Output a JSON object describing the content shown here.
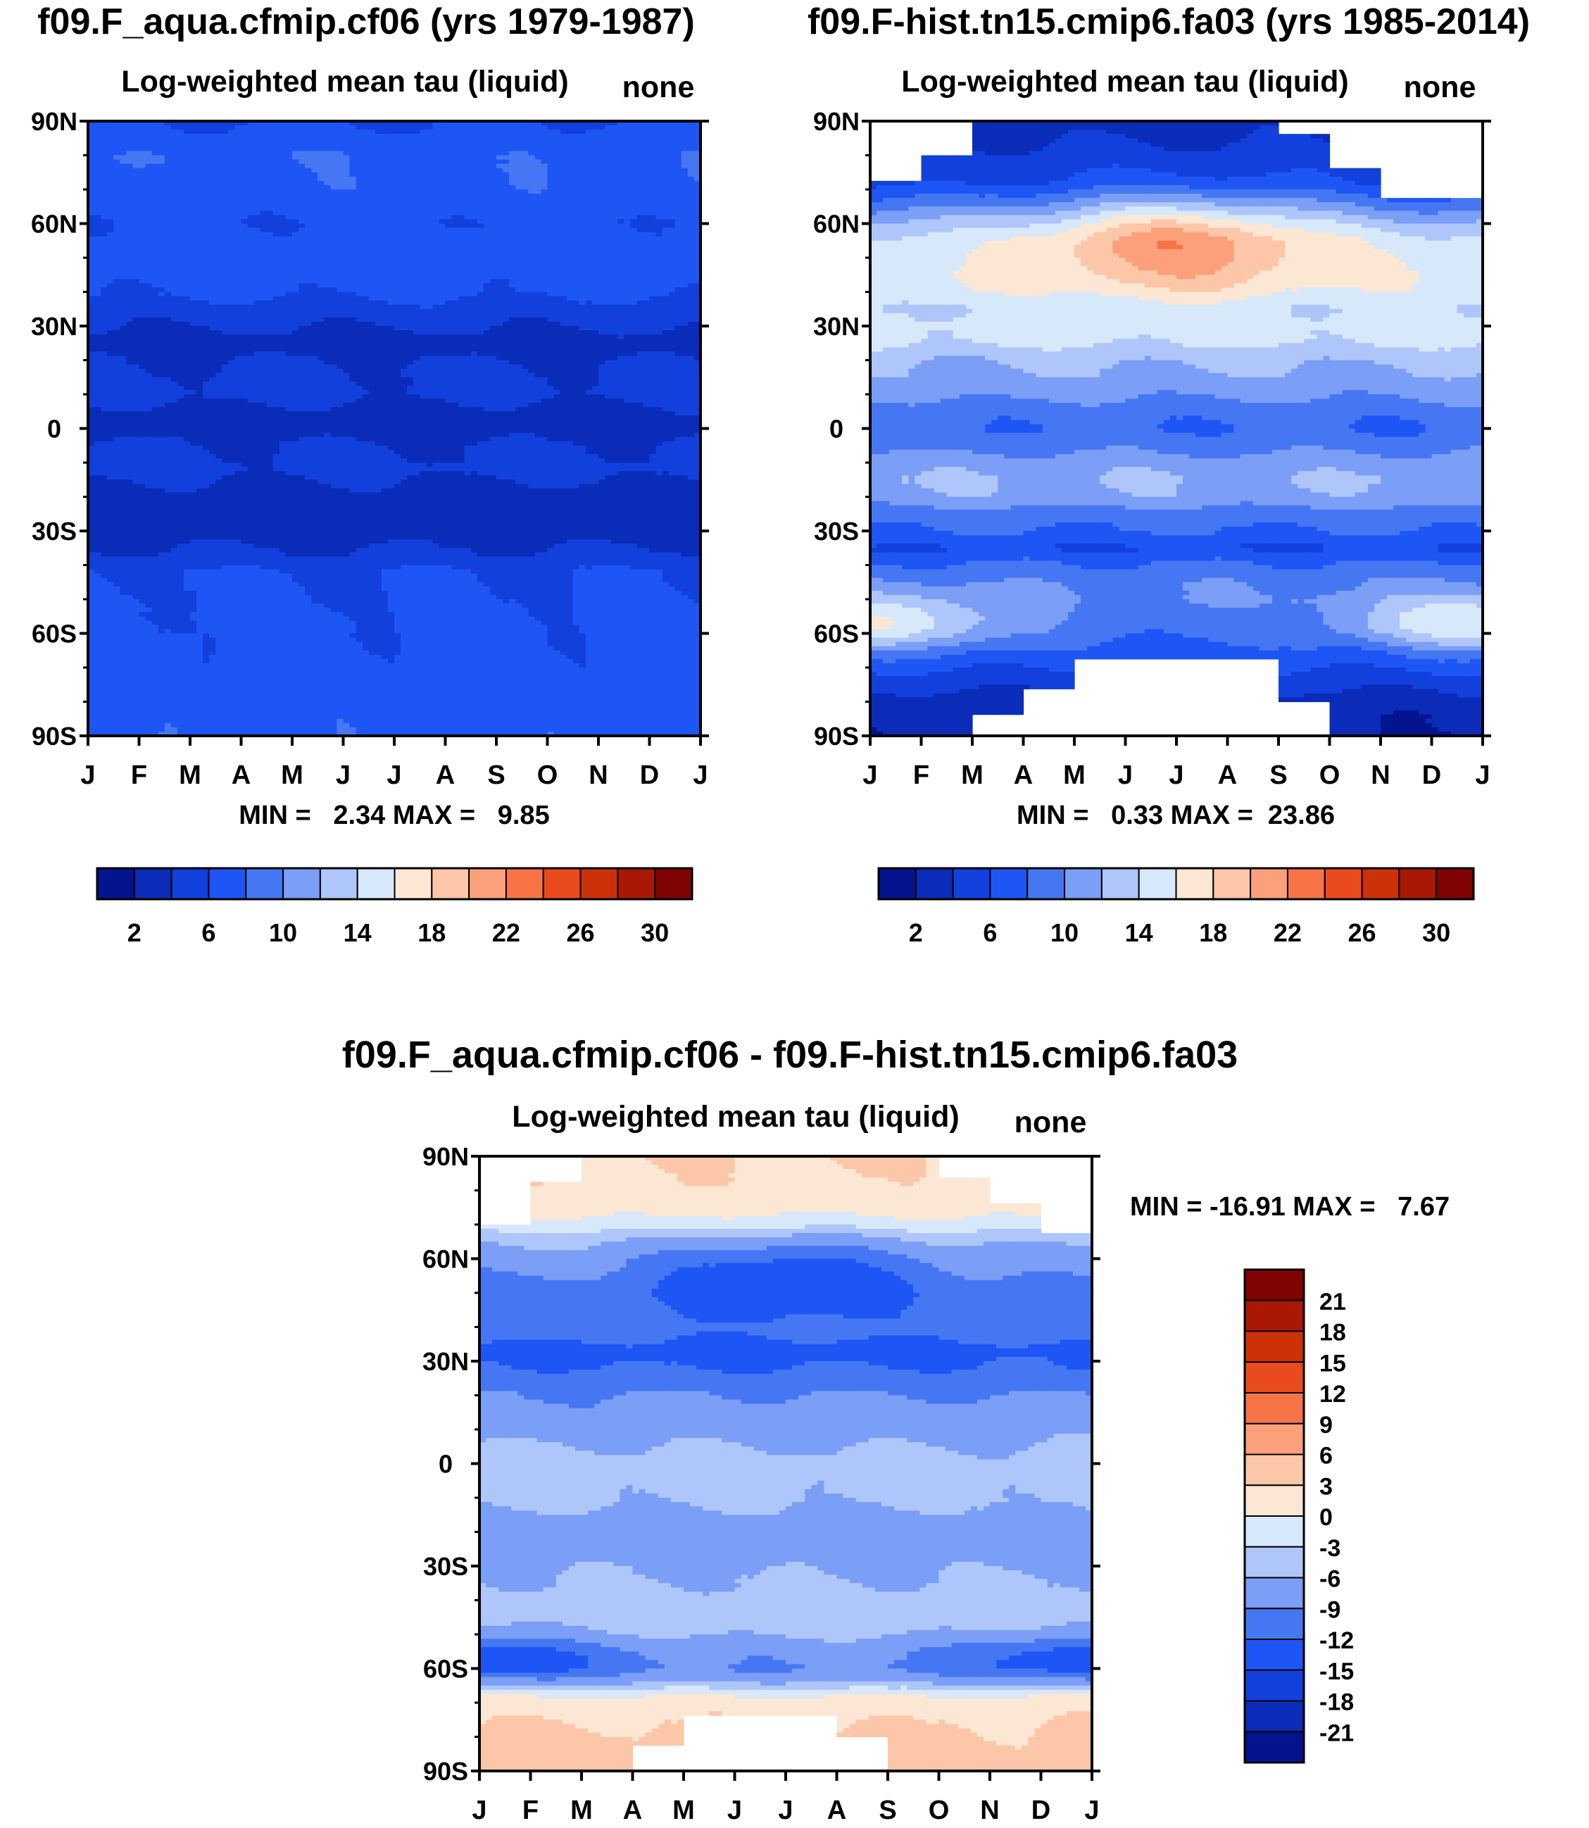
{
  "figure": {
    "panel_top_left_title": "f09.F_aqua.cfmip.cf06 (yrs 1979-1987)",
    "panel_top_right_title": "f09.F-hist.tn15.cmip6.fa03 (yrs 1985-2014)",
    "diff_title": "f09.F_aqua.cfmip.cf06 - f09.F-hist.tn15.cmip6.fa03"
  },
  "chart_data": [
    {
      "type": "heatmap",
      "id": "panel1",
      "title": "f09.F_aqua.cfmip.cf06 (yrs 1979-1987)",
      "subtitle": "Log-weighted mean tau (liquid)",
      "units": "none",
      "x_ticks": [
        "J",
        "F",
        "M",
        "A",
        "M",
        "J",
        "J",
        "A",
        "S",
        "O",
        "N",
        "D",
        "J"
      ],
      "y_ticks": [
        "90N",
        "60N",
        "30N",
        "0",
        "30S",
        "60S",
        "90S"
      ],
      "ylim": [
        -90,
        90
      ],
      "min_max": "MIN =   2.34 MAX =   9.85",
      "levels": [
        2,
        4,
        6,
        8,
        10,
        12,
        14,
        16,
        18,
        20,
        22,
        24,
        26,
        28,
        30,
        32
      ],
      "colorbar_labels": [
        "2",
        "6",
        "10",
        "14",
        "18",
        "22",
        "26",
        "30"
      ],
      "colors": [
        "#04148f",
        "#0a2cb8",
        "#1240dc",
        "#1e56f5",
        "#4677f3",
        "#7b9ef6",
        "#aec6fa",
        "#d7e8fb",
        "#fce6d4",
        "#fcc7a8",
        "#fba07a",
        "#f87447",
        "#ea4b1e",
        "#cc3108",
        "#a91804",
        "#7f0303"
      ],
      "lat_profile": [
        [
          90,
          6
        ],
        [
          80,
          7.6
        ],
        [
          70,
          7.4
        ],
        [
          60,
          6.4
        ],
        [
          50,
          7.2
        ],
        [
          40,
          6.4
        ],
        [
          33,
          4.8
        ],
        [
          25,
          3.0
        ],
        [
          18,
          4.2
        ],
        [
          10,
          4.6
        ],
        [
          3,
          3.0
        ],
        [
          0,
          2.9
        ],
        [
          -5,
          4.2
        ],
        [
          -12,
          4.6
        ],
        [
          -20,
          3.0
        ],
        [
          -30,
          2.8
        ],
        [
          -36,
          4.2
        ],
        [
          -42,
          6.0
        ],
        [
          -50,
          6.3
        ],
        [
          -60,
          6.5
        ],
        [
          -70,
          6.7
        ],
        [
          -80,
          7.3
        ],
        [
          -90,
          7.4
        ]
      ]
    },
    {
      "type": "heatmap",
      "id": "panel2",
      "title": "f09.F-hist.tn15.cmip6.fa03 (yrs 1985-2014)",
      "subtitle": "Log-weighted mean tau (liquid)",
      "units": "none",
      "x_ticks": [
        "J",
        "F",
        "M",
        "A",
        "M",
        "J",
        "J",
        "A",
        "S",
        "O",
        "N",
        "D",
        "J"
      ],
      "y_ticks": [
        "90N",
        "60N",
        "30N",
        "0",
        "30S",
        "60S",
        "90S"
      ],
      "ylim": [
        -90,
        90
      ],
      "min_max": "MIN =   0.33 MAX =  23.86",
      "levels": [
        2,
        4,
        6,
        8,
        10,
        12,
        14,
        16,
        18,
        20,
        22,
        24,
        26,
        28,
        30,
        32
      ],
      "colorbar_labels": [
        "2",
        "6",
        "10",
        "14",
        "18",
        "22",
        "26",
        "30"
      ],
      "colors": [
        "#04148f",
        "#0a2cb8",
        "#1240dc",
        "#1e56f5",
        "#4677f3",
        "#7b9ef6",
        "#aec6fa",
        "#d7e8fb",
        "#fce6d4",
        "#fcc7a8",
        "#fba07a",
        "#f87447",
        "#ea4b1e",
        "#cc3108",
        "#a91804",
        "#7f0303"
      ],
      "lat_profile": [
        [
          90,
          3
        ],
        [
          80,
          4.5
        ],
        [
          72,
          5.6
        ],
        [
          66,
          8.8
        ],
        [
          60,
          12.5
        ],
        [
          55,
          14.8
        ],
        [
          50,
          15.4
        ],
        [
          45,
          15.8
        ],
        [
          40,
          15.4
        ],
        [
          35,
          14
        ],
        [
          30,
          14.8
        ],
        [
          25,
          14.2
        ],
        [
          20,
          12.3
        ],
        [
          15,
          11.5
        ],
        [
          10,
          10.5
        ],
        [
          5,
          8.8
        ],
        [
          0,
          8.2
        ],
        [
          -5,
          9.2
        ],
        [
          -10,
          11.2
        ],
        [
          -15,
          12
        ],
        [
          -20,
          11.4
        ],
        [
          -25,
          9
        ],
        [
          -30,
          8
        ],
        [
          -35,
          6
        ],
        [
          -40,
          8.3
        ],
        [
          -45,
          9.6
        ],
        [
          -50,
          10
        ],
        [
          -55,
          9
        ],
        [
          -60,
          8.6
        ],
        [
          -65,
          7.3
        ],
        [
          -70,
          6
        ],
        [
          -75,
          4.5
        ],
        [
          -80,
          3
        ],
        [
          -85,
          2.4
        ],
        [
          -90,
          2.2
        ]
      ],
      "seasonal_bump": {
        "lat_center": 55,
        "lat_width": 14,
        "amplitude": 6.5,
        "peak_month": 6
      },
      "southern_bump": {
        "lat_center": -57,
        "lat_width": 8,
        "amplitude": 7,
        "peak_month": 0
      },
      "missing": {
        "north": [
          [
            0,
            72
          ],
          [
            1,
            80
          ],
          [
            2,
            90
          ],
          [
            3,
            90
          ],
          [
            4,
            90
          ],
          [
            5,
            90
          ],
          [
            6,
            90
          ],
          [
            7,
            90
          ],
          [
            8,
            86
          ],
          [
            9,
            76
          ],
          [
            10,
            68
          ],
          [
            11,
            68
          ],
          [
            12,
            68
          ]
        ],
        "south": [
          [
            0,
            -90
          ],
          [
            1,
            -90
          ],
          [
            2,
            -84
          ],
          [
            3,
            -76
          ],
          [
            4,
            -68
          ],
          [
            5,
            -68
          ],
          [
            6,
            -68
          ],
          [
            7,
            -68
          ],
          [
            8,
            -80
          ],
          [
            9,
            -90
          ],
          [
            10,
            -90
          ],
          [
            11,
            -90
          ],
          [
            12,
            -90
          ]
        ]
      }
    },
    {
      "type": "heatmap",
      "id": "panel3",
      "title": "f09.F_aqua.cfmip.cf06 - f09.F-hist.tn15.cmip6.fa03",
      "subtitle": "Log-weighted mean tau (liquid)",
      "units": "none",
      "x_ticks": [
        "J",
        "F",
        "M",
        "A",
        "M",
        "J",
        "J",
        "A",
        "S",
        "O",
        "N",
        "D",
        "J"
      ],
      "y_ticks": [
        "90N",
        "60N",
        "30N",
        "0",
        "30S",
        "60S",
        "90S"
      ],
      "ylim": [
        -90,
        90
      ],
      "min_max": "MIN = -16.91 MAX =   7.67",
      "levels": [
        -21,
        -18,
        -15,
        -12,
        -9,
        -6,
        -3,
        0,
        3,
        6,
        9,
        12,
        15,
        18,
        21
      ],
      "colorbar_labels": [
        "21",
        "18",
        "15",
        "12",
        "9",
        "6",
        "3",
        "0",
        "-3",
        "-6",
        "-9",
        "-12",
        "-15",
        "-18",
        "-21"
      ],
      "colors": [
        "#04148f",
        "#0a2cb8",
        "#1240dc",
        "#1e56f5",
        "#4677f3",
        "#7b9ef6",
        "#aec6fa",
        "#d7e8fb",
        "#fce6d4",
        "#fcc7a8",
        "#fba07a",
        "#f87447",
        "#ea4b1e",
        "#cc3108",
        "#a91804",
        "#7f0303"
      ],
      "lat_profile": [
        [
          90,
          3
        ],
        [
          82,
          2.5
        ],
        [
          75,
          1.5
        ],
        [
          70,
          -1
        ],
        [
          66,
          -5
        ],
        [
          60,
          -7.5
        ],
        [
          50,
          -10
        ],
        [
          40,
          -10
        ],
        [
          33,
          -13
        ],
        [
          28,
          -12
        ],
        [
          20,
          -9
        ],
        [
          10,
          -7
        ],
        [
          0,
          -5
        ],
        [
          -10,
          -5.5
        ],
        [
          -20,
          -7.5
        ],
        [
          -30,
          -6.5
        ],
        [
          -40,
          -5
        ],
        [
          -45,
          -4.8
        ],
        [
          -50,
          -5.5
        ],
        [
          -55,
          -8
        ],
        [
          -60,
          -9
        ],
        [
          -64,
          -6
        ],
        [
          -67,
          -1
        ],
        [
          -70,
          2
        ],
        [
          -80,
          3.5
        ],
        [
          -90,
          4
        ]
      ],
      "seasonal_dip": {
        "lat_center": 54,
        "lat_width": 12,
        "amplitude": -6,
        "peak_month": 6
      },
      "southern_dip": {
        "lat_center": -57,
        "lat_width": 7,
        "amplitude": -6,
        "peak_month": 0
      },
      "missing": {
        "north": [
          [
            0,
            70
          ],
          [
            1,
            82
          ],
          [
            2,
            90
          ],
          [
            3,
            90
          ],
          [
            4,
            90
          ],
          [
            5,
            90
          ],
          [
            6,
            90
          ],
          [
            7,
            90
          ],
          [
            8,
            90
          ],
          [
            9,
            84
          ],
          [
            10,
            76
          ],
          [
            11,
            68
          ],
          [
            12,
            68
          ]
        ],
        "south": [
          [
            0,
            -90
          ],
          [
            1,
            -90
          ],
          [
            2,
            -90
          ],
          [
            3,
            -82
          ],
          [
            4,
            -74
          ],
          [
            5,
            -74
          ],
          [
            6,
            -74
          ],
          [
            7,
            -80
          ],
          [
            8,
            -90
          ],
          [
            9,
            -90
          ],
          [
            10,
            -90
          ],
          [
            11,
            -90
          ],
          [
            12,
            -90
          ]
        ]
      }
    }
  ]
}
